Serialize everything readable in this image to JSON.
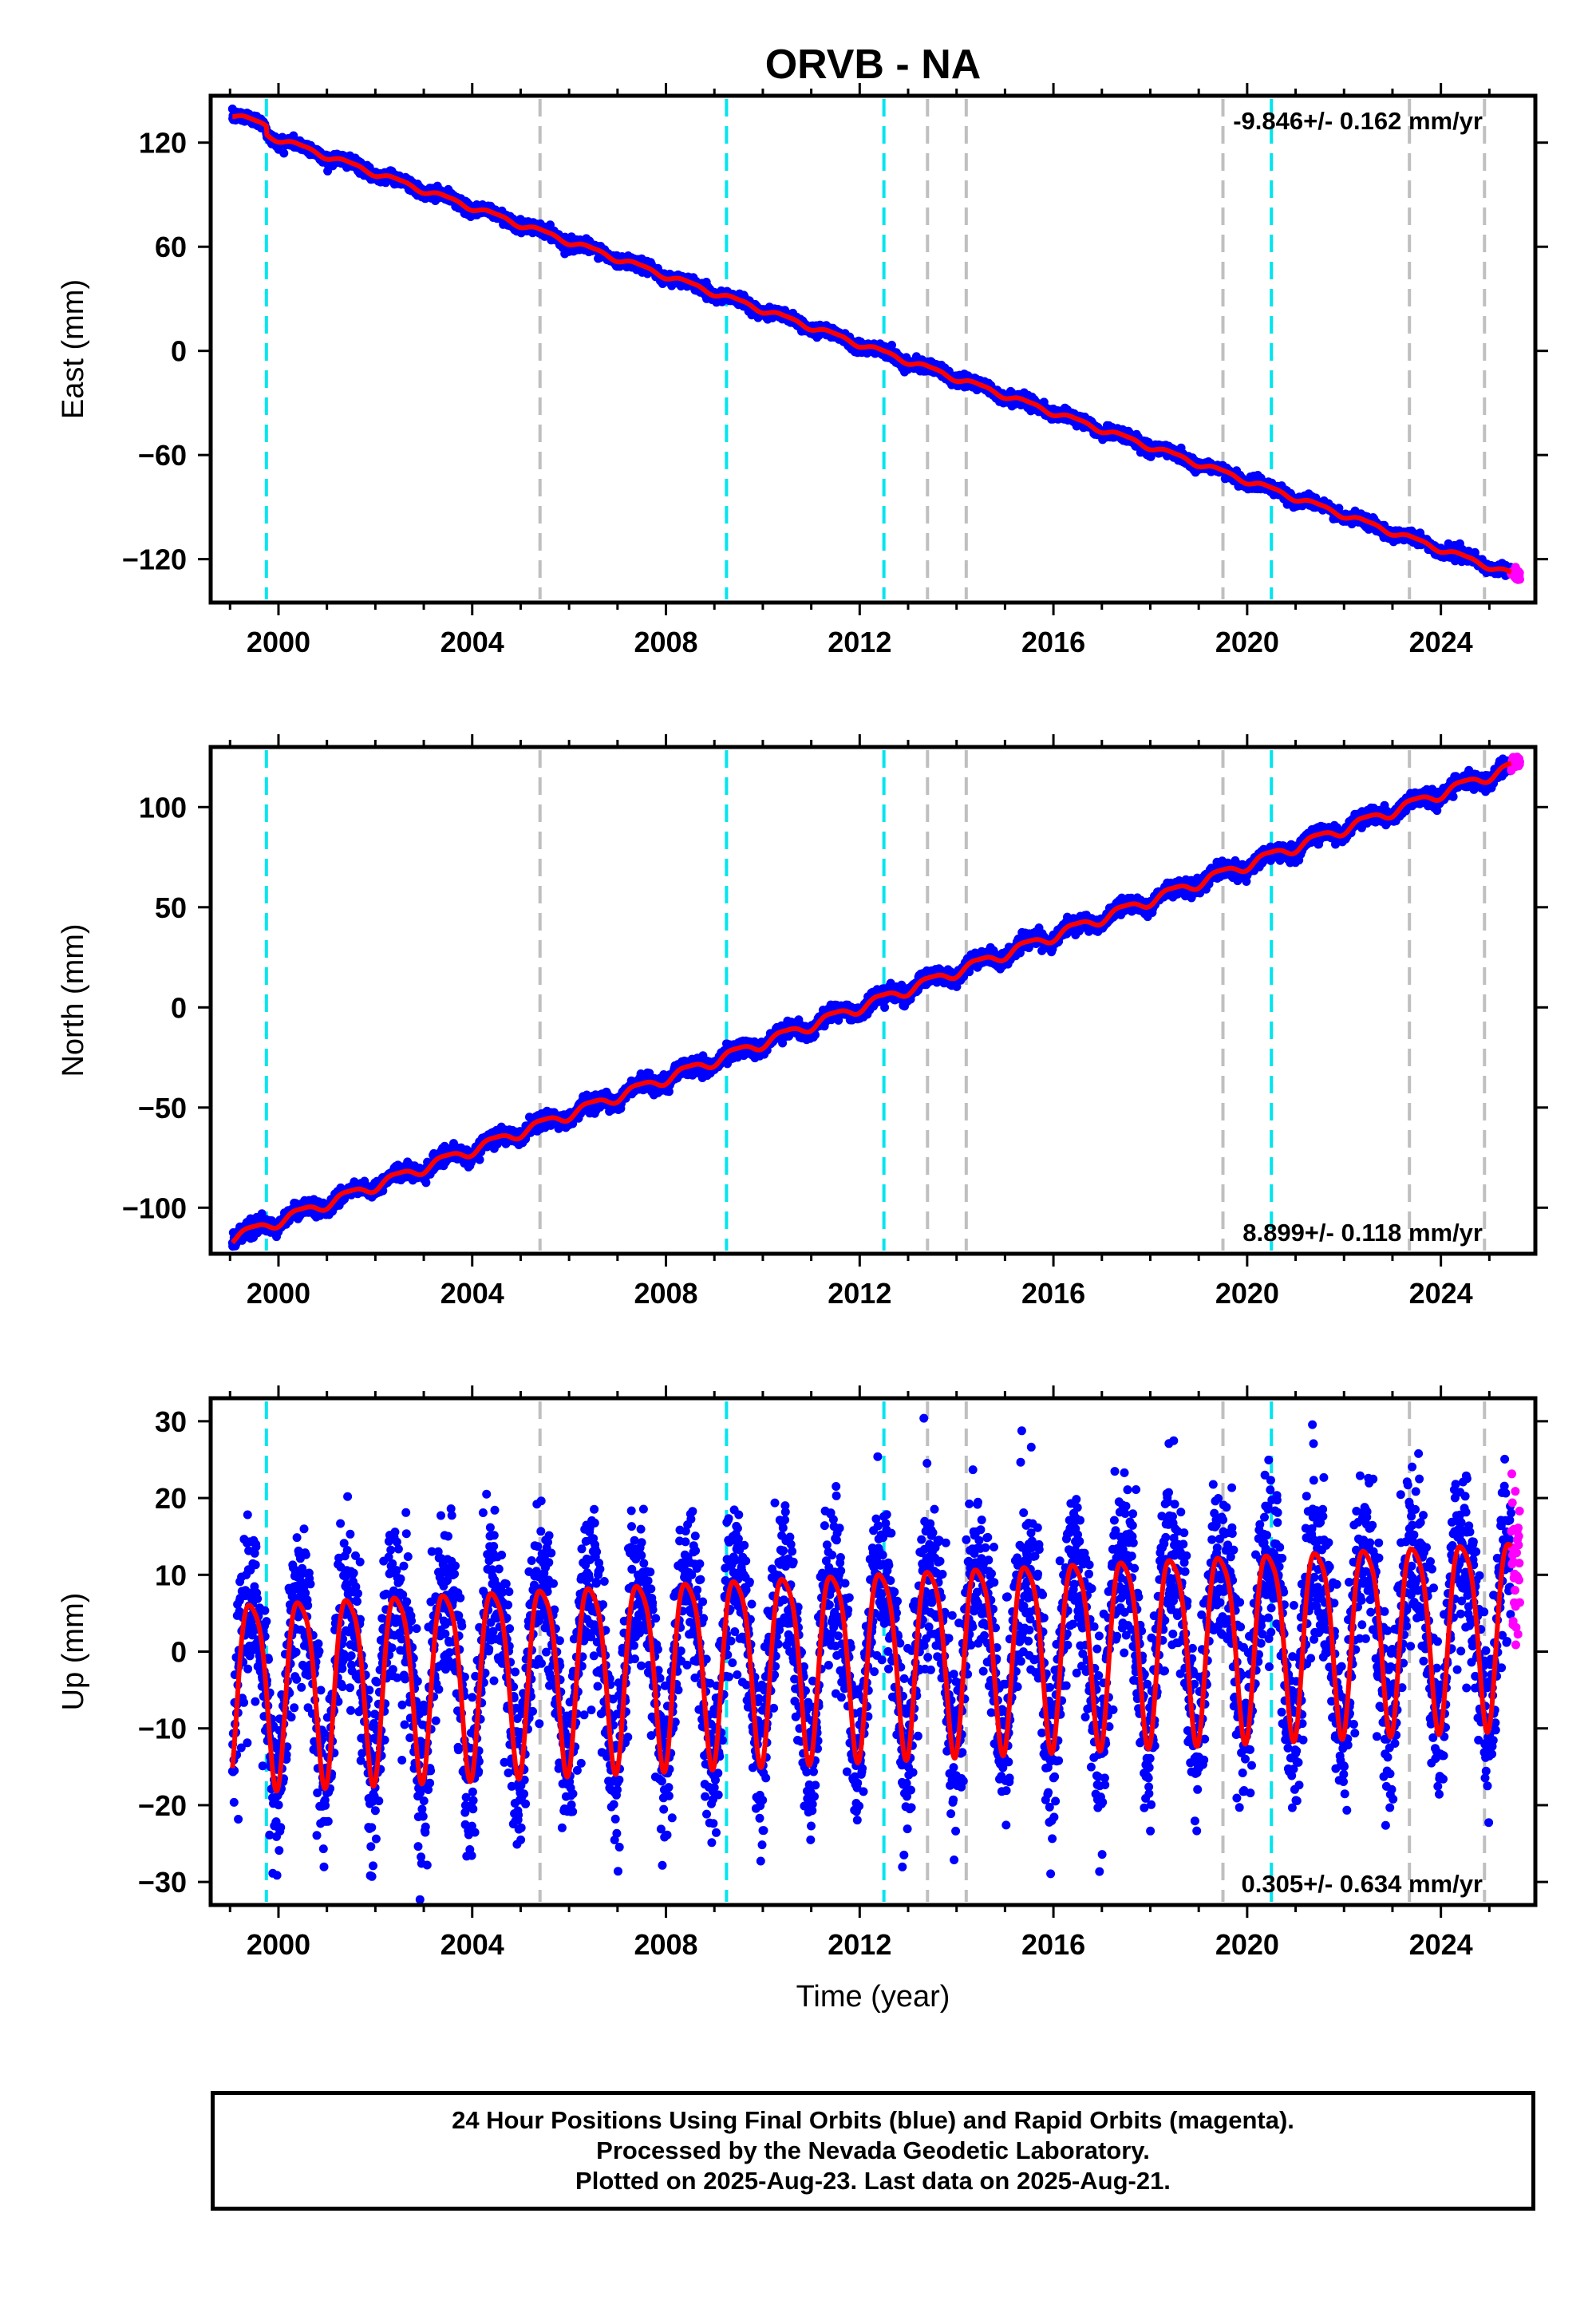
{
  "page": {
    "title": "ORVB - NA"
  },
  "footer": {
    "line1": "24 Hour Positions Using Final Orbits (blue) and Rapid Orbits (magenta).",
    "line2": "Processed by the Nevada Geodetic Laboratory.",
    "line3": "Plotted on 2025-Aug-23. Last data on 2025-Aug-21."
  },
  "colors": {
    "final_orbits": "#0000ff",
    "rapid_orbits": "#ff00ff",
    "model_fit": "#ff0000",
    "equipment_change_lines": "#00e5ee",
    "other_event_lines": "#bfbfbf"
  },
  "chart_data": [
    {
      "type": "scatter",
      "component": "east",
      "ylabel": "East (mm)",
      "xlabel": "",
      "xlim": [
        1998.6,
        2025.95
      ],
      "ylim": [
        -145,
        147
      ],
      "xticks": [
        2000,
        2004,
        2008,
        2012,
        2016,
        2020,
        2024
      ],
      "yticks": [
        -120,
        -60,
        0,
        60,
        120
      ],
      "ytick_labels": [
        "−120",
        "−60",
        "0",
        "60",
        "120"
      ],
      "rate_label": "-9.846+/- 0.162 mm/yr",
      "rate_label_position": "top-right",
      "start_year": 1999.05,
      "end_year": 2025.63,
      "rapid_start_year": 2025.45,
      "trend": {
        "slope": -9.846,
        "intercept_at_start": 136.5,
        "offsets": [
          {
            "year": 1999.75,
            "value": -5
          }
        ]
      },
      "seasonal": {
        "annual_amplitude": 1.5,
        "semiannual_amplitude": 0.5
      },
      "scatter_mm": 1.6,
      "event_lines": [
        {
          "year": 1999.75,
          "kind": "equipment"
        },
        {
          "year": 2005.4,
          "kind": "other"
        },
        {
          "year": 2009.25,
          "kind": "equipment"
        },
        {
          "year": 2012.5,
          "kind": "equipment"
        },
        {
          "year": 2013.4,
          "kind": "other"
        },
        {
          "year": 2014.2,
          "kind": "other"
        },
        {
          "year": 2019.5,
          "kind": "other"
        },
        {
          "year": 2020.5,
          "kind": "equipment"
        },
        {
          "year": 2023.35,
          "kind": "other"
        },
        {
          "year": 2024.9,
          "kind": "other"
        }
      ]
    },
    {
      "type": "scatter",
      "component": "north",
      "ylabel": "North (mm)",
      "xlabel": "",
      "xlim": [
        1998.6,
        2025.95
      ],
      "ylim": [
        -123,
        130
      ],
      "xticks": [
        2000,
        2004,
        2008,
        2012,
        2016,
        2020,
        2024
      ],
      "yticks": [
        -100,
        -50,
        0,
        50,
        100
      ],
      "ytick_labels": [
        "−100",
        "−50",
        "0",
        "50",
        "100"
      ],
      "rate_label": "8.899+/- 0.118 mm/yr",
      "rate_label_position": "bottom-right",
      "start_year": 1999.05,
      "end_year": 2025.63,
      "rapid_start_year": 2025.45,
      "trend": {
        "slope": 8.899,
        "intercept_at_start": -115,
        "offsets": []
      },
      "seasonal": {
        "annual_amplitude": 2.5,
        "semiannual_amplitude": 0.7
      },
      "scatter_mm": 1.8,
      "event_lines": [
        {
          "year": 1999.75,
          "kind": "equipment"
        },
        {
          "year": 2005.4,
          "kind": "other"
        },
        {
          "year": 2009.25,
          "kind": "equipment"
        },
        {
          "year": 2012.5,
          "kind": "equipment"
        },
        {
          "year": 2013.4,
          "kind": "other"
        },
        {
          "year": 2014.2,
          "kind": "other"
        },
        {
          "year": 2019.5,
          "kind": "other"
        },
        {
          "year": 2020.5,
          "kind": "equipment"
        },
        {
          "year": 2023.35,
          "kind": "other"
        },
        {
          "year": 2024.9,
          "kind": "other"
        }
      ]
    },
    {
      "type": "scatter",
      "component": "up",
      "ylabel": "Up (mm)",
      "xlabel": "Time (year)",
      "xlim": [
        1998.6,
        2025.95
      ],
      "ylim": [
        -33,
        33
      ],
      "xticks": [
        2000,
        2004,
        2008,
        2012,
        2016,
        2020,
        2024
      ],
      "yticks": [
        -30,
        -20,
        -10,
        0,
        10,
        20,
        30
      ],
      "ytick_labels": [
        "−30",
        "−20",
        "−10",
        "0",
        "10",
        "20",
        "30"
      ],
      "rate_label": "0.305+/- 0.634 mm/yr",
      "rate_label_position": "bottom-right",
      "start_year": 1999.05,
      "end_year": 2025.63,
      "rapid_start_year": 2025.45,
      "trend": {
        "slope": 0.305,
        "intercept_at_start": -4,
        "offsets": []
      },
      "seasonal": {
        "annual_amplitude": 12,
        "semiannual_amplitude": 2.5
      },
      "scatter_mm": 5.5,
      "event_lines": [
        {
          "year": 1999.75,
          "kind": "equipment"
        },
        {
          "year": 2005.4,
          "kind": "other"
        },
        {
          "year": 2009.25,
          "kind": "equipment"
        },
        {
          "year": 2012.5,
          "kind": "equipment"
        },
        {
          "year": 2013.4,
          "kind": "other"
        },
        {
          "year": 2014.2,
          "kind": "other"
        },
        {
          "year": 2019.5,
          "kind": "other"
        },
        {
          "year": 2020.5,
          "kind": "equipment"
        },
        {
          "year": 2023.35,
          "kind": "other"
        },
        {
          "year": 2024.9,
          "kind": "other"
        }
      ]
    }
  ]
}
